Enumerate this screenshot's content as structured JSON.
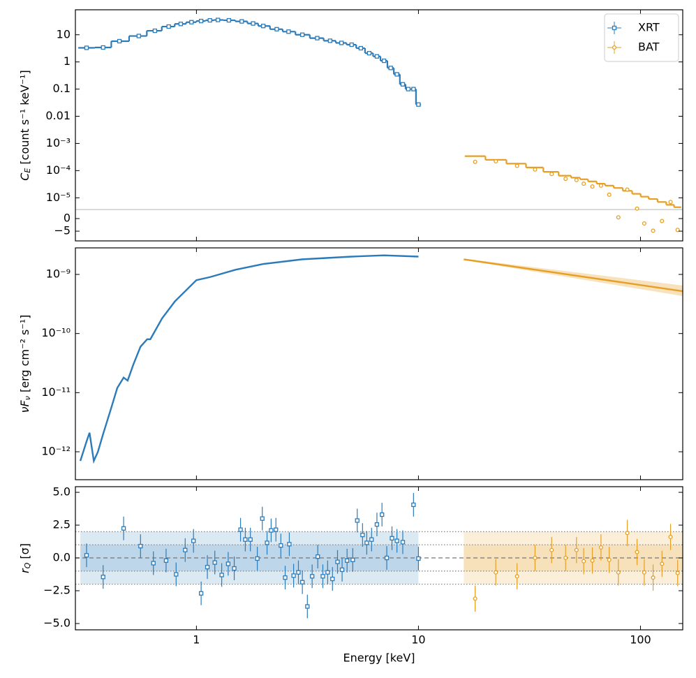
{
  "chart_data": [
    {
      "type": "step",
      "ylabel": {
        "symbol": "C",
        "sub": "E",
        "unit": " [count s⁻¹ keV⁻¹]"
      },
      "xscale": "log",
      "yscale": "symlog",
      "linthresh": 3.7e-06,
      "linscale": 0.333,
      "xlim": [
        0.285,
        155
      ],
      "ylim": [
        -1.14e-05,
        83
      ],
      "yticks": [
        10,
        1,
        0.1,
        0.01,
        {
          "value": 0.001,
          "label": "10⁻³"
        },
        {
          "value": 0.0001,
          "label": "10⁻⁴"
        },
        {
          "value": 1e-05,
          "label": "10⁻⁵"
        },
        0,
        {
          "value": -5e-06,
          "label": "−5"
        }
      ],
      "legend": "upper right",
      "series": [
        {
          "name": "XRT",
          "color": "#2b7bba",
          "marker": "square",
          "x": [
            0.32,
            0.38,
            0.45,
            0.55,
            0.65,
            0.75,
            0.85,
            0.95,
            1.05,
            1.15,
            1.25,
            1.4,
            1.6,
            1.8,
            2.0,
            2.3,
            2.6,
            3.0,
            3.5,
            4.0,
            4.5,
            5.0,
            5.5,
            6.0,
            6.5,
            7.0,
            7.5,
            8.0,
            8.5,
            9.0,
            9.5,
            10
          ],
          "values": [
            3.3,
            3.4,
            5.8,
            9,
            14,
            20,
            25,
            29,
            32,
            34,
            35,
            34,
            31,
            26,
            21,
            16,
            13,
            10,
            7.5,
            6,
            5,
            4.3,
            3.2,
            2.1,
            1.6,
            1.1,
            0.6,
            0.35,
            0.15,
            0.1,
            0.1,
            0.027
          ]
        },
        {
          "name": "BAT",
          "color": "#e69f25",
          "marker": "circle",
          "x": [
            18,
            22.3,
            27.8,
            33.5,
            39.8,
            46,
            51.5,
            55.5,
            60.7,
            66.4,
            72.3,
            79.5,
            87.2,
            96.5,
            104,
            114,
            125,
            136.6,
            147
          ],
          "values": [
            0.00021,
            0.00022,
            0.00015,
            0.00011,
            7.5e-05,
            5e-05,
            4.5e-05,
            3.3e-05,
            2.6e-05,
            2.8e-05,
            1.3e-05,
            5e-07,
            2e-05,
            4e-06,
            -2e-06,
            -4.8e-06,
            -1e-06,
            7e-06,
            -4.5e-06
          ],
          "model": [
            0.00034,
            0.00025,
            0.00018,
            0.00013,
            9e-05,
            6.5e-05,
            5.5e-05,
            4.8e-05,
            4e-05,
            3.3e-05,
            2.8e-05,
            2.3e-05,
            1.8e-05,
            1.4e-05,
            1.1e-05,
            9e-06,
            7e-06,
            5.5e-06,
            4.5e-06
          ]
        }
      ]
    },
    {
      "type": "line",
      "ylabel": {
        "symbol": "νF",
        "sub": "ν",
        "unit": " [erg cm⁻² s⁻¹]"
      },
      "xscale": "log",
      "yscale": "log",
      "xlim": [
        0.285,
        155
      ],
      "ylim": [
        3.37e-13,
        2.81e-09
      ],
      "yticks": [
        {
          "value": 1e-09,
          "label": "10⁻⁹"
        },
        {
          "value": 1e-10,
          "label": "10⁻¹⁰"
        },
        {
          "value": 1e-11,
          "label": "10⁻¹¹"
        },
        {
          "value": 1e-12,
          "label": "10⁻¹²"
        }
      ],
      "series": [
        {
          "color": "#2b7bba",
          "x": [
            0.3,
            0.32,
            0.33,
            0.345,
            0.36,
            0.38,
            0.41,
            0.44,
            0.47,
            0.49,
            0.52,
            0.56,
            0.6,
            0.62,
            0.7,
            0.8,
            1.0,
            1.15,
            1.5,
            2,
            3,
            5,
            7,
            10
          ],
          "values": [
            7e-13,
            1.5e-12,
            2.1e-12,
            7e-13,
            1e-12,
            2e-12,
            5e-12,
            1.2e-11,
            1.8e-11,
            1.6e-11,
            3e-11,
            6e-11,
            8e-11,
            8e-11,
            1.8e-10,
            3.5e-10,
            8e-10,
            9e-10,
            1.2e-09,
            1.5e-09,
            1.8e-09,
            2e-09,
            2.1e-09,
            2e-09
          ]
        },
        {
          "color": "#e69f25",
          "x": [
            16,
            155
          ],
          "values": [
            1.8e-09,
            5.2e-10
          ],
          "lower": [
            1.75e-09,
            4.3e-10
          ],
          "upper": [
            1.85e-09,
            6.5e-10
          ]
        }
      ]
    },
    {
      "type": "scatter",
      "ylabel": {
        "symbol": "r",
        "sub": "Q",
        "unit": " [σ]"
      },
      "xlabel": "Energy [keV]",
      "xscale": "log",
      "xlim": [
        0.285,
        155
      ],
      "ylim": [
        -5.48,
        5.43
      ],
      "xticks": [
        1,
        10,
        100
      ],
      "yticks": [
        {
          "value": 5,
          "label": "5.0"
        },
        2.5,
        {
          "value": 0,
          "label": "0.0"
        },
        {
          "value": -2.5,
          "label": "−2.5"
        },
        {
          "value": -5,
          "label": "−5.0"
        }
      ],
      "sigma_bands": [
        1,
        2
      ],
      "hline": 0,
      "series": [
        {
          "color": "#2b7bba",
          "marker": "square",
          "band_x": [
            0.3,
            10
          ],
          "x": [
            0.32,
            0.38,
            0.47,
            0.56,
            0.64,
            0.73,
            0.81,
            0.89,
            0.97,
            1.05,
            1.12,
            1.21,
            1.3,
            1.39,
            1.48,
            1.58,
            1.66,
            1.75,
            1.88,
            1.98,
            2.08,
            2.17,
            2.28,
            2.4,
            2.51,
            2.62,
            2.74,
            2.88,
            3.0,
            3.16,
            3.32,
            3.52,
            3.71,
            3.9,
            4.1,
            4.32,
            4.53,
            4.77,
            5.06,
            5.3,
            5.6,
            5.85,
            6.15,
            6.5,
            6.85,
            7.2,
            7.6,
            8.0,
            8.5,
            9.5,
            10
          ],
          "values": [
            0.2,
            -1.45,
            2.25,
            0.9,
            -0.4,
            -0.2,
            -1.25,
            0.6,
            1.3,
            -2.7,
            -0.7,
            -0.35,
            -1.3,
            -0.45,
            -0.8,
            2.15,
            1.4,
            1.4,
            -0.05,
            3.0,
            1.15,
            2.1,
            2.15,
            0.95,
            -1.5,
            1.05,
            -1.35,
            -1.1,
            -1.85,
            -3.7,
            -1.4,
            0.1,
            -1.4,
            -1.1,
            -1.6,
            -0.3,
            -0.9,
            -0.2,
            -0.15,
            2.85,
            1.75,
            1.15,
            1.4,
            2.55,
            3.3,
            0.0,
            1.5,
            1.3,
            1.2,
            4.05,
            -0.05
          ],
          "yerr": [
            0.9,
            0.9,
            0.9,
            0.9,
            0.9,
            0.9,
            0.9,
            0.9,
            0.9,
            0.9,
            0.9,
            0.9,
            0.9,
            0.9,
            0.9,
            0.9,
            0.9,
            0.9,
            0.9,
            0.9,
            0.9,
            0.9,
            0.9,
            0.9,
            0.9,
            0.9,
            0.9,
            0.9,
            0.9,
            0.9,
            0.9,
            0.9,
            0.9,
            0.9,
            0.9,
            0.9,
            0.9,
            0.9,
            0.9,
            0.9,
            0.9,
            0.9,
            0.9,
            0.9,
            0.9,
            0.9,
            0.9,
            0.9,
            0.9,
            0.9,
            0.9
          ]
        },
        {
          "color": "#e69f25",
          "marker": "circle",
          "band_x": [
            16,
            155
          ],
          "x": [
            18,
            22.3,
            27.8,
            33.5,
            39.8,
            46,
            51.5,
            55.5,
            60.7,
            66.4,
            72.3,
            79.5,
            87.2,
            96.5,
            104,
            114,
            125,
            136.6,
            147
          ],
          "values": [
            -3.1,
            -1.1,
            -1.4,
            0.0,
            0.6,
            0.0,
            0.6,
            -0.25,
            -0.2,
            0.8,
            -0.15,
            -1.1,
            1.9,
            0.45,
            -1.1,
            -1.5,
            -0.45,
            1.6,
            -1.15
          ],
          "yerr": [
            1,
            1,
            1,
            1,
            1,
            1,
            1,
            1,
            1,
            1,
            1,
            1,
            1,
            1,
            1,
            1,
            1,
            1,
            1
          ]
        }
      ]
    }
  ]
}
